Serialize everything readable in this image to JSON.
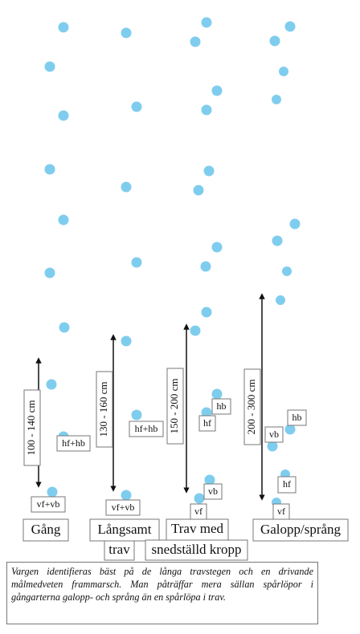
{
  "gaits": [
    {
      "name": [
        "Gång"
      ],
      "distance": "100 - 140 cm",
      "tracks": [
        "hf+hb",
        "vf+vb"
      ]
    },
    {
      "name": [
        "Långsamt",
        "trav"
      ],
      "distance": "130 - 160 cm",
      "tracks": [
        "hf+hb",
        "vf+vb"
      ]
    },
    {
      "name": [
        "Trav med",
        "snedställd kropp"
      ],
      "distance": "150 - 200 cm",
      "tracks": [
        "hb",
        "hf",
        "vb",
        "vf"
      ]
    },
    {
      "name": [
        "Galopp/språng"
      ],
      "distance": "200 - 300 cm",
      "tracks": [
        "hb",
        "vb",
        "hf",
        "vf"
      ]
    }
  ],
  "caption": "Vargen identifieras bäst på de långa travstegen och en drivande målmedveten frammarsch. Man påträffar mera sällan spårlöpor i gångarterna galopp- och språng än en spårlöpa i trav."
}
